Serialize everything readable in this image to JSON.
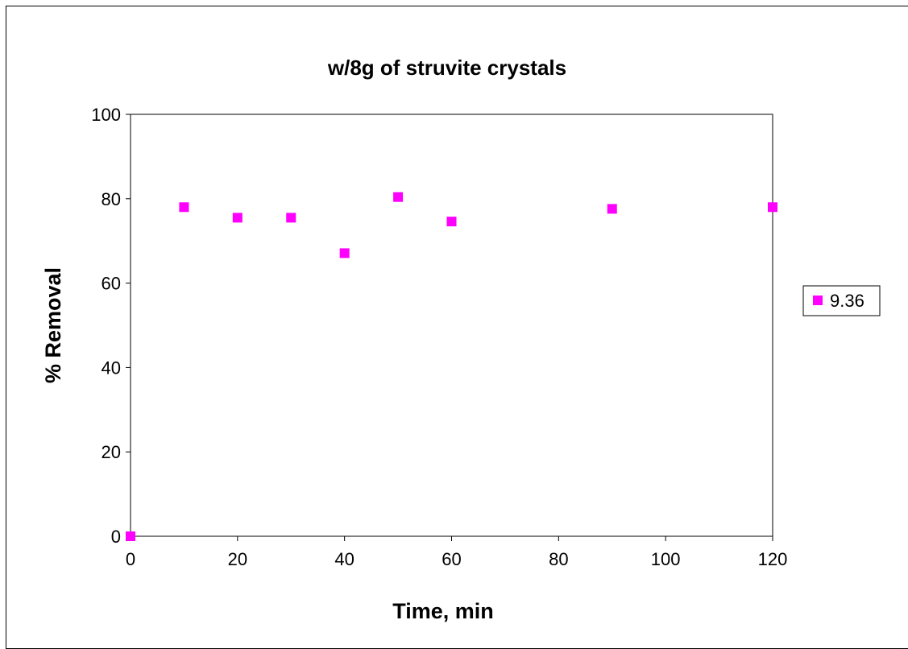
{
  "chart_data": {
    "type": "scatter",
    "title": "w/8g of struvite crystals",
    "xlabel": "Time, min",
    "ylabel": "% Removal",
    "xlim": [
      0,
      120
    ],
    "ylim": [
      0,
      100
    ],
    "xticks": [
      0,
      20,
      40,
      60,
      80,
      100,
      120
    ],
    "yticks": [
      0,
      20,
      40,
      60,
      80,
      100
    ],
    "grid": false,
    "legend_position": "right",
    "series": [
      {
        "name": "9.36",
        "color": "#ff00ff",
        "marker": "square",
        "points": [
          {
            "x": 0,
            "y": 0
          },
          {
            "x": 10,
            "y": 78
          },
          {
            "x": 20,
            "y": 75.5
          },
          {
            "x": 30,
            "y": 75.5
          },
          {
            "x": 40,
            "y": 67.1
          },
          {
            "x": 50,
            "y": 80.4
          },
          {
            "x": 60,
            "y": 74.6
          },
          {
            "x": 90,
            "y": 77.6
          },
          {
            "x": 120,
            "y": 78
          }
        ]
      }
    ]
  }
}
